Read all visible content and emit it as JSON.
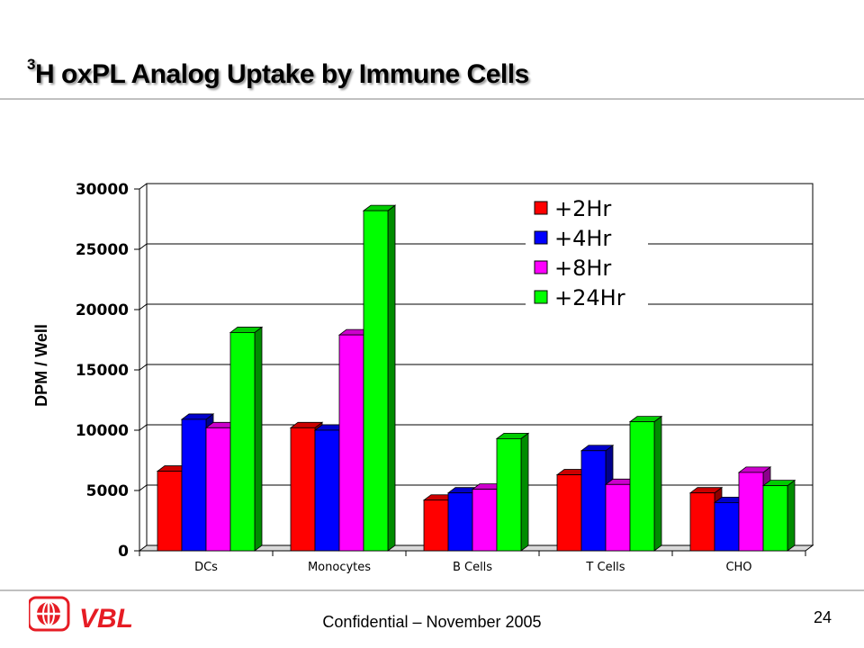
{
  "title": {
    "sup": "3",
    "main": "H oxPL Analog Uptake by Immune Cells"
  },
  "footer": {
    "confidential": "Confidential – November 2005",
    "page": "24"
  },
  "logo": {
    "text": "VBL"
  },
  "chart_data": {
    "type": "bar",
    "title": "",
    "xlabel": "",
    "ylabel": "DPM / Well",
    "ylim": [
      0,
      30000
    ],
    "yticks": [
      0,
      5000,
      10000,
      15000,
      20000,
      25000,
      30000
    ],
    "grid": true,
    "legend_position": "top-right",
    "categories": [
      "DCs",
      "Monocytes",
      "B Cells",
      "T Cells",
      "CHO"
    ],
    "series": [
      {
        "name": "+2Hr",
        "color": "#ff0000",
        "values": [
          6600,
          10200,
          4200,
          6300,
          4800
        ]
      },
      {
        "name": "+4Hr",
        "color": "#0000ff",
        "values": [
          10900,
          10000,
          4800,
          8300,
          4000
        ]
      },
      {
        "name": "+8Hr",
        "color": "#ff00ff",
        "values": [
          10200,
          17900,
          5100,
          5500,
          6500
        ]
      },
      {
        "name": "+24Hr",
        "color": "#00ff00",
        "values": [
          18100,
          28200,
          9300,
          10700,
          5400
        ]
      }
    ]
  }
}
